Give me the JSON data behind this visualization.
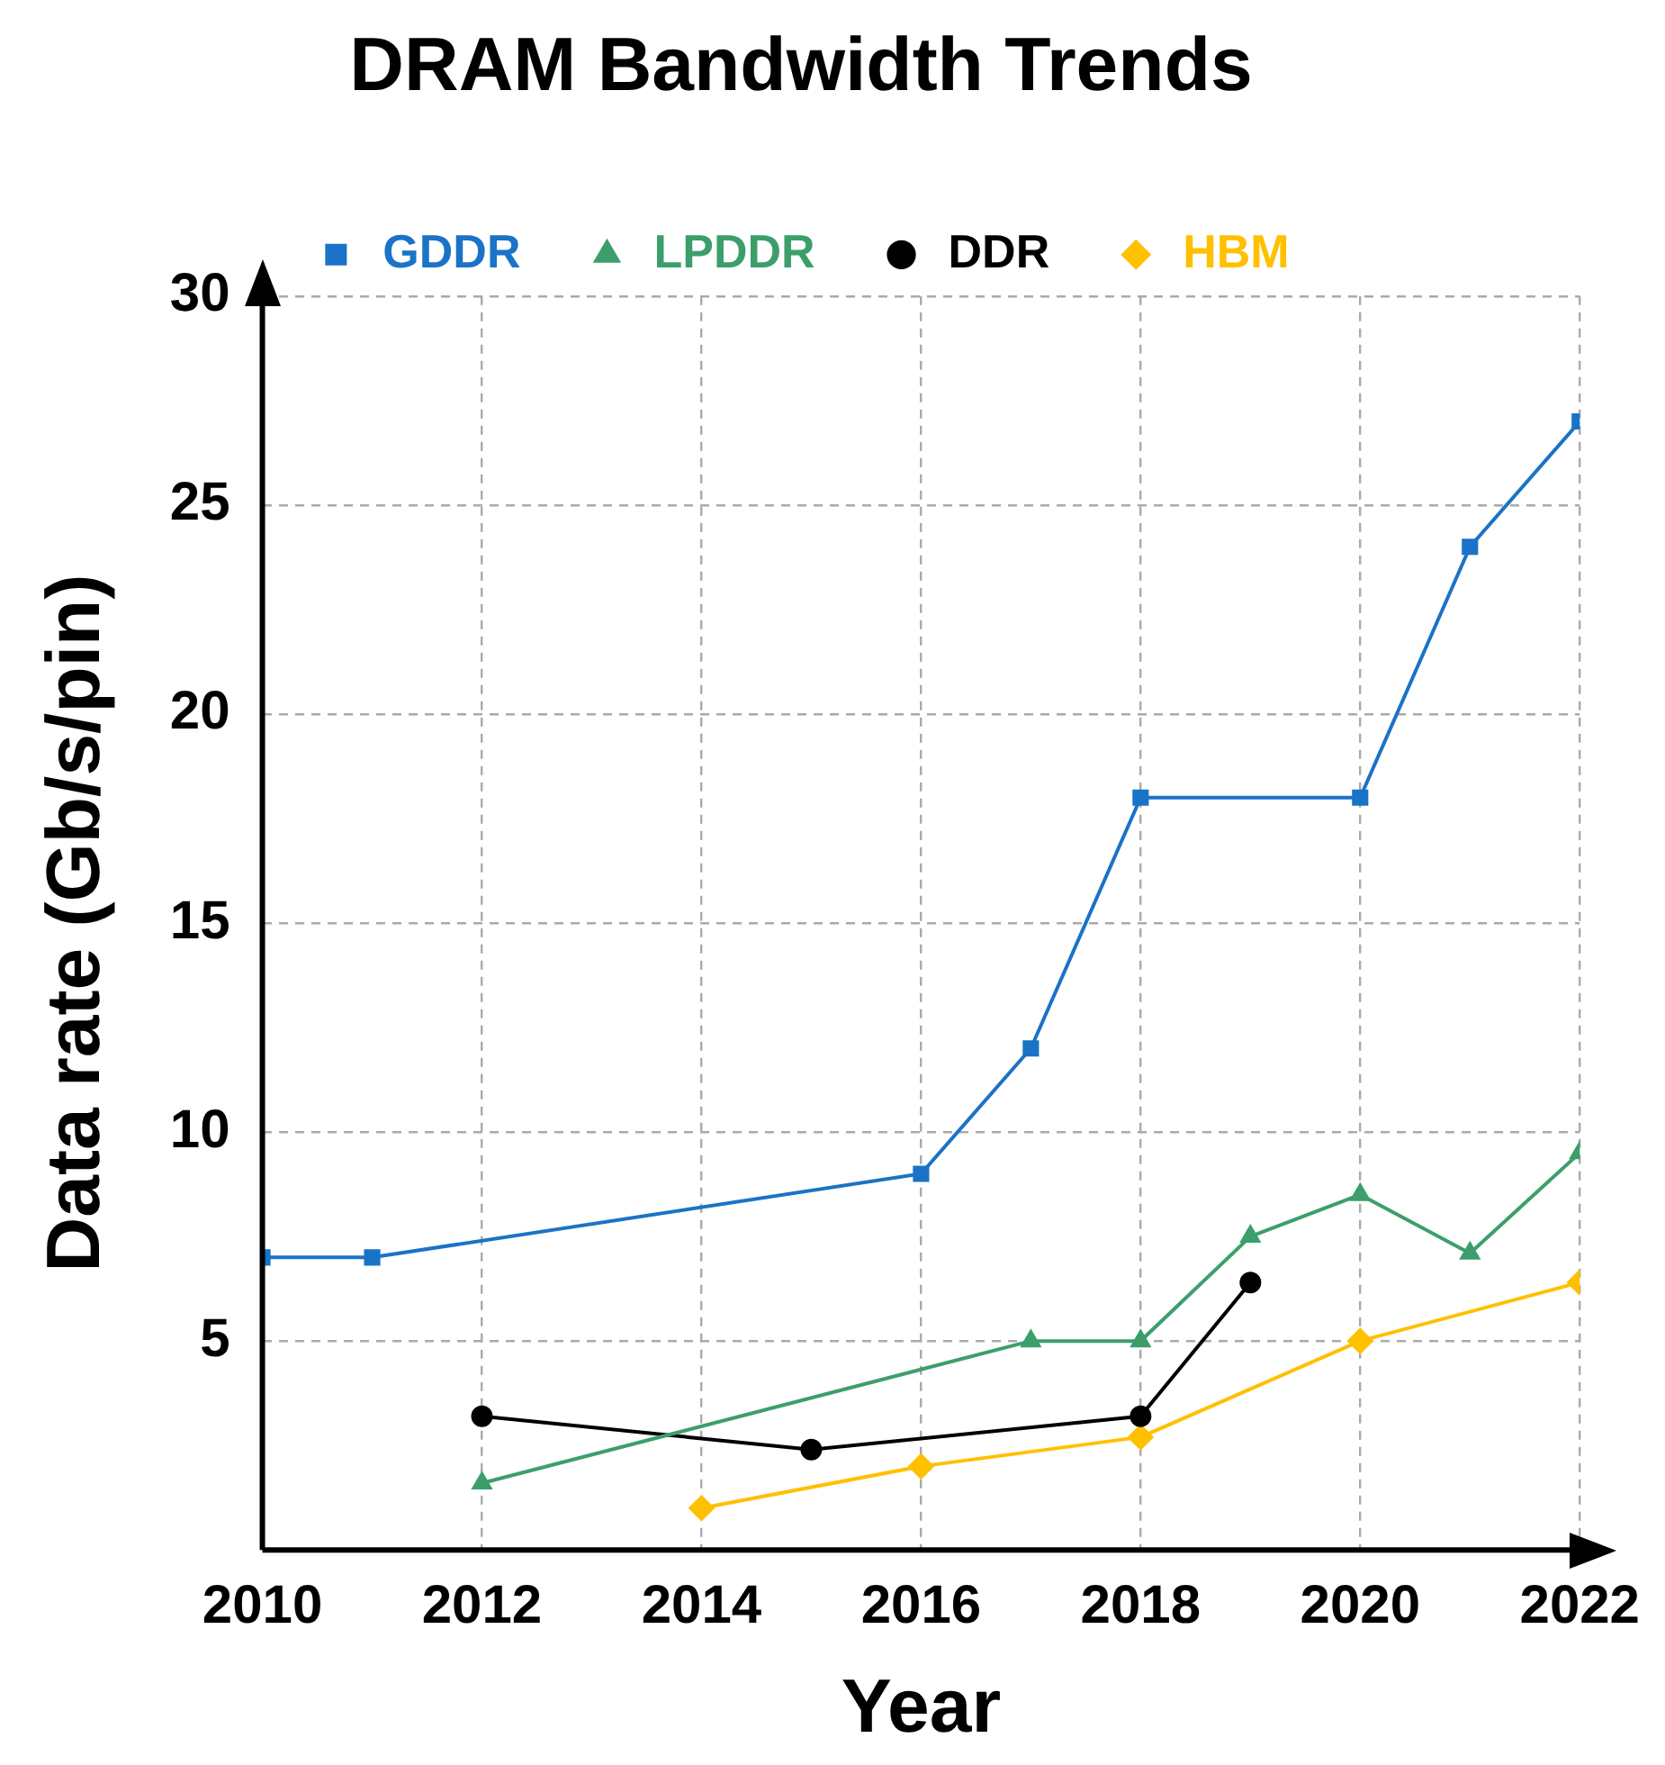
{
  "chart_data": {
    "type": "line",
    "title": "DRAM Bandwidth Trends",
    "xlabel": "Year",
    "ylabel": "Data rate (Gb/s/pin)",
    "xlim": [
      2010,
      2022
    ],
    "xticks": [
      2010,
      2012,
      2014,
      2016,
      2018,
      2020,
      2022
    ],
    "ylim": [
      0,
      30
    ],
    "yticks": [
      {
        "value": 0,
        "label": null
      },
      5,
      10,
      15,
      20,
      25,
      30
    ],
    "grid": true,
    "legend": "top",
    "line_style": "solid",
    "series": [
      {
        "name": "GDDR",
        "color": "#1a73c6",
        "marker": "square",
        "x": [
          2010,
          2011,
          2016,
          2017,
          2018,
          2020,
          2021,
          2022
        ],
        "values": [
          7,
          7,
          9,
          12,
          18,
          18,
          24,
          27
        ]
      },
      {
        "name": "LPDDR",
        "color": "#3c9f6b",
        "marker": "triangle",
        "x": [
          2012,
          2017,
          2018,
          2019,
          2020,
          2021,
          2022
        ],
        "values": [
          1.6,
          5,
          5,
          7.5,
          8.5,
          7.1,
          9.5
        ]
      },
      {
        "name": "DDR",
        "color": "#000000",
        "marker": "circle",
        "x": [
          2012,
          2015,
          2018,
          2019
        ],
        "values": [
          3.2,
          2.4,
          3.2,
          6.4
        ]
      },
      {
        "name": "HBM",
        "color": "#ffc000",
        "marker": "diamond",
        "x": [
          2014,
          2016,
          2018,
          2020,
          2022
        ],
        "values": [
          1.0,
          2.0,
          2.7,
          5,
          6.4
        ]
      }
    ]
  }
}
